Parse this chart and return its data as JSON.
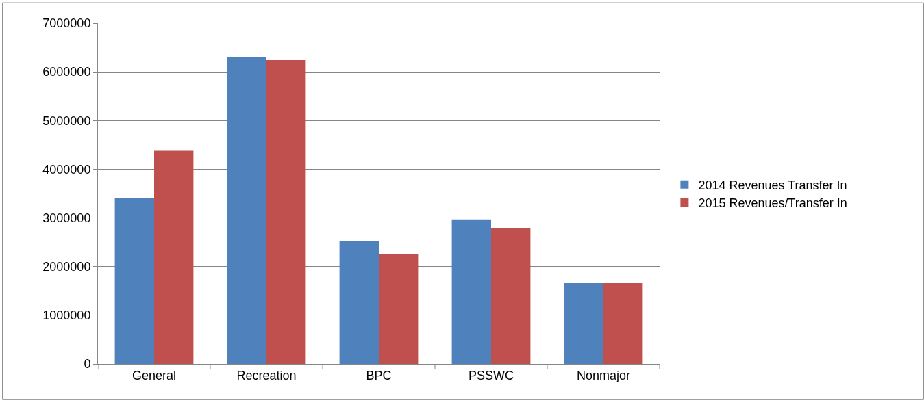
{
  "chart_data": {
    "type": "bar",
    "categories": [
      "General",
      "Recreation",
      "BPC",
      "PSSWC",
      "Nonmajor"
    ],
    "series": [
      {
        "name": "2014 Revenues Transfer In",
        "color": "#4f81bd",
        "values": [
          3400000,
          6300000,
          2520000,
          2970000,
          1660000
        ]
      },
      {
        "name": "2015 Revenues/Transfer In",
        "color": "#c0504d",
        "values": [
          4380000,
          6250000,
          2260000,
          2790000,
          1660000
        ]
      }
    ],
    "ylim": [
      0,
      7000000
    ],
    "yticks": [
      0,
      1000000,
      2000000,
      3000000,
      4000000,
      5000000,
      6000000,
      7000000
    ],
    "grid": "y",
    "legend": "right"
  }
}
